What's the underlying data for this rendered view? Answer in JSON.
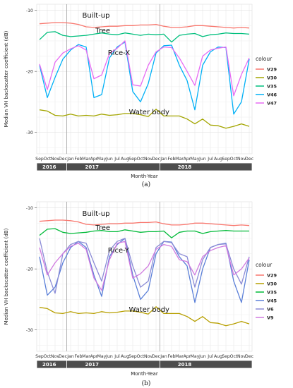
{
  "chart_data": [
    {
      "type": "line",
      "panel_label": "(a)",
      "ylabel": "Median VH backscatter coefficient (dB)",
      "xlabel": "Month-Year",
      "legend_title": "colour",
      "ylim": [
        -33.5,
        -9.0
      ],
      "yticks": [
        -10,
        -20,
        -30
      ],
      "months": [
        "Sep",
        "Oct",
        "Nov",
        "Dec",
        "Jan",
        "Feb",
        "Mar",
        "Apr",
        "May",
        "Jun",
        "Jul",
        "Aug",
        "Sep",
        "Oct",
        "Nov",
        "Dec",
        "Jan",
        "Feb",
        "Mar",
        "Apr",
        "May",
        "Jun",
        "Jul",
        "Aug",
        "Sep",
        "Oct",
        "Nov",
        "Dec"
      ],
      "years": [
        "2016",
        "2017",
        "2018"
      ],
      "annotations": [
        {
          "text": "Built-up",
          "x": 5.5,
          "y": -11.2
        },
        {
          "text": "Tree",
          "x": 7.2,
          "y": -13.7
        },
        {
          "text": "Rice-X",
          "x": 8.8,
          "y": -17.3
        },
        {
          "text": "Water body",
          "x": 11.5,
          "y": -27.0
        }
      ],
      "series": [
        {
          "name": "V29",
          "color": "#f8766d",
          "values": [
            -12.2,
            -12.1,
            -12.0,
            -12.0,
            -12.1,
            -12.3,
            -12.7,
            -12.8,
            -12.7,
            -12.6,
            -12.6,
            -12.5,
            -12.5,
            -12.4,
            -12.4,
            -12.3,
            -12.6,
            -12.8,
            -12.8,
            -12.7,
            -12.5,
            -12.5,
            -12.6,
            -12.7,
            -12.8,
            -12.9,
            -12.8,
            -12.9
          ]
        },
        {
          "name": "V30",
          "color": "#a3a500",
          "values": [
            -26.3,
            -26.5,
            -27.2,
            -27.3,
            -27.0,
            -27.3,
            -27.2,
            -27.3,
            -27.0,
            -27.2,
            -27.1,
            -26.9,
            -26.9,
            -27.1,
            -27.4,
            -26.2,
            -27.3,
            -27.3,
            -27.3,
            -27.8,
            -28.6,
            -27.8,
            -28.8,
            -28.9,
            -29.3,
            -29.0,
            -28.6,
            -29.0
          ]
        },
        {
          "name": "V35",
          "color": "#00bf7d",
          "values": [
            -14.8,
            -13.6,
            -13.5,
            -14.1,
            -14.3,
            -14.2,
            -14.1,
            -13.9,
            -13.7,
            -13.9,
            -14.0,
            -13.7,
            -13.9,
            -14.1,
            -13.9,
            -14.0,
            -13.9,
            -15.2,
            -14.1,
            -13.9,
            -13.8,
            -14.3,
            -14.0,
            -13.9,
            -13.7,
            -13.8,
            -13.8,
            -13.9
          ]
        },
        {
          "name": "V46",
          "color": "#00b0f6",
          "values": [
            -19.0,
            -24.3,
            -21.0,
            -18.0,
            -16.5,
            -15.6,
            -16.0,
            -24.3,
            -23.8,
            -17.8,
            -16.0,
            -15.2,
            -23.3,
            -25.0,
            -22.0,
            -17.0,
            -15.8,
            -15.7,
            -19.0,
            -21.5,
            -26.3,
            -19.0,
            -16.8,
            -16.0,
            -16.1,
            -27.0,
            -25.0,
            -18.0
          ]
        },
        {
          "name": "V47",
          "color": "#e76bf3",
          "values": [
            -18.8,
            -23.0,
            -18.5,
            -17.0,
            -16.3,
            -15.8,
            -16.5,
            -21.2,
            -20.6,
            -17.1,
            -16.2,
            -15.0,
            -22.2,
            -22.4,
            -19.0,
            -16.8,
            -16.0,
            -16.1,
            -17.8,
            -20.0,
            -22.3,
            -17.5,
            -16.5,
            -16.2,
            -16.0,
            -24.0,
            -20.5,
            -17.8
          ]
        }
      ]
    },
    {
      "type": "line",
      "panel_label": "(b)",
      "ylabel": "Median VH backscatter coefficient (dB)",
      "xlabel": "Month-Year",
      "legend_title": "colour",
      "ylim": [
        -33.5,
        -9.0
      ],
      "yticks": [
        -10,
        -20,
        -30
      ],
      "months": [
        "Sep",
        "Oct",
        "Nov",
        "Dec",
        "Jan",
        "Feb",
        "Mar",
        "Apr",
        "May",
        "Jun",
        "Jul",
        "Aug",
        "Sep",
        "Oct",
        "Nov",
        "Dec",
        "Jan",
        "Feb",
        "Mar",
        "Apr",
        "May",
        "Jun",
        "Jul",
        "Aug",
        "Sep",
        "Oct",
        "Nov",
        "Dec"
      ],
      "years": [
        "2016",
        "2017",
        "2018"
      ],
      "annotations": [
        {
          "text": "Built-up",
          "x": 5.5,
          "y": -11.3
        },
        {
          "text": "Tree",
          "x": 7.2,
          "y": -13.6
        },
        {
          "text": "Rice-Y",
          "x": 8.8,
          "y": -17.3
        },
        {
          "text": "Water body",
          "x": 11.5,
          "y": -27.0
        }
      ],
      "series": [
        {
          "name": "V29",
          "color": "#f8766d",
          "values": [
            -12.2,
            -12.1,
            -12.0,
            -12.0,
            -12.1,
            -12.3,
            -12.7,
            -12.8,
            -12.7,
            -12.6,
            -12.6,
            -12.5,
            -12.5,
            -12.4,
            -12.4,
            -12.3,
            -12.6,
            -12.8,
            -12.8,
            -12.7,
            -12.5,
            -12.5,
            -12.6,
            -12.7,
            -12.8,
            -12.9,
            -12.8,
            -12.9
          ]
        },
        {
          "name": "V30",
          "color": "#b79f00",
          "values": [
            -26.3,
            -26.5,
            -27.2,
            -27.3,
            -27.0,
            -27.3,
            -27.2,
            -27.3,
            -27.0,
            -27.2,
            -27.1,
            -26.9,
            -26.9,
            -27.1,
            -27.4,
            -26.2,
            -27.3,
            -27.3,
            -27.3,
            -27.8,
            -28.6,
            -27.8,
            -28.8,
            -28.9,
            -29.3,
            -29.0,
            -28.6,
            -29.0
          ]
        },
        {
          "name": "V35",
          "color": "#00ba38",
          "values": [
            -14.5,
            -13.5,
            -13.4,
            -14.0,
            -14.2,
            -14.1,
            -14.0,
            -13.8,
            -13.7,
            -13.9,
            -13.9,
            -13.6,
            -13.8,
            -14.0,
            -13.9,
            -13.9,
            -13.8,
            -14.9,
            -14.0,
            -13.8,
            -13.8,
            -14.2,
            -13.9,
            -13.8,
            -13.7,
            -13.8,
            -13.8,
            -13.8
          ]
        },
        {
          "name": "V45",
          "color": "#5a7fd8",
          "values": [
            -18.0,
            -24.3,
            -23.0,
            -19.0,
            -16.5,
            -15.5,
            -16.5,
            -21.0,
            -24.5,
            -18.0,
            -16.0,
            -15.0,
            -21.0,
            -25.0,
            -23.5,
            -17.5,
            -15.5,
            -15.6,
            -18.0,
            -19.5,
            -25.5,
            -20.0,
            -16.5,
            -16.0,
            -15.8,
            -22.0,
            -25.5,
            -18.5
          ]
        },
        {
          "name": "V6",
          "color": "#8b8bd6",
          "values": [
            -15.0,
            -20.5,
            -24.0,
            -17.5,
            -16.0,
            -15.5,
            -15.8,
            -19.0,
            -22.0,
            -17.0,
            -15.5,
            -15.0,
            -19.5,
            -23.0,
            -22.0,
            -16.5,
            -15.5,
            -15.7,
            -17.5,
            -18.0,
            -23.0,
            -18.5,
            -16.5,
            -16.0,
            -15.9,
            -20.0,
            -22.5,
            -18.0
          ]
        },
        {
          "name": "V9",
          "color": "#d07adf",
          "values": [
            -16.5,
            -21.0,
            -19.0,
            -17.5,
            -16.3,
            -15.8,
            -16.8,
            -21.5,
            -23.5,
            -18.5,
            -15.8,
            -15.5,
            -21.5,
            -20.8,
            -19.5,
            -16.8,
            -16.0,
            -16.3,
            -18.5,
            -18.8,
            -21.0,
            -18.0,
            -17.0,
            -16.5,
            -16.2,
            -21.0,
            -20.0,
            -18.2
          ]
        }
      ]
    }
  ]
}
